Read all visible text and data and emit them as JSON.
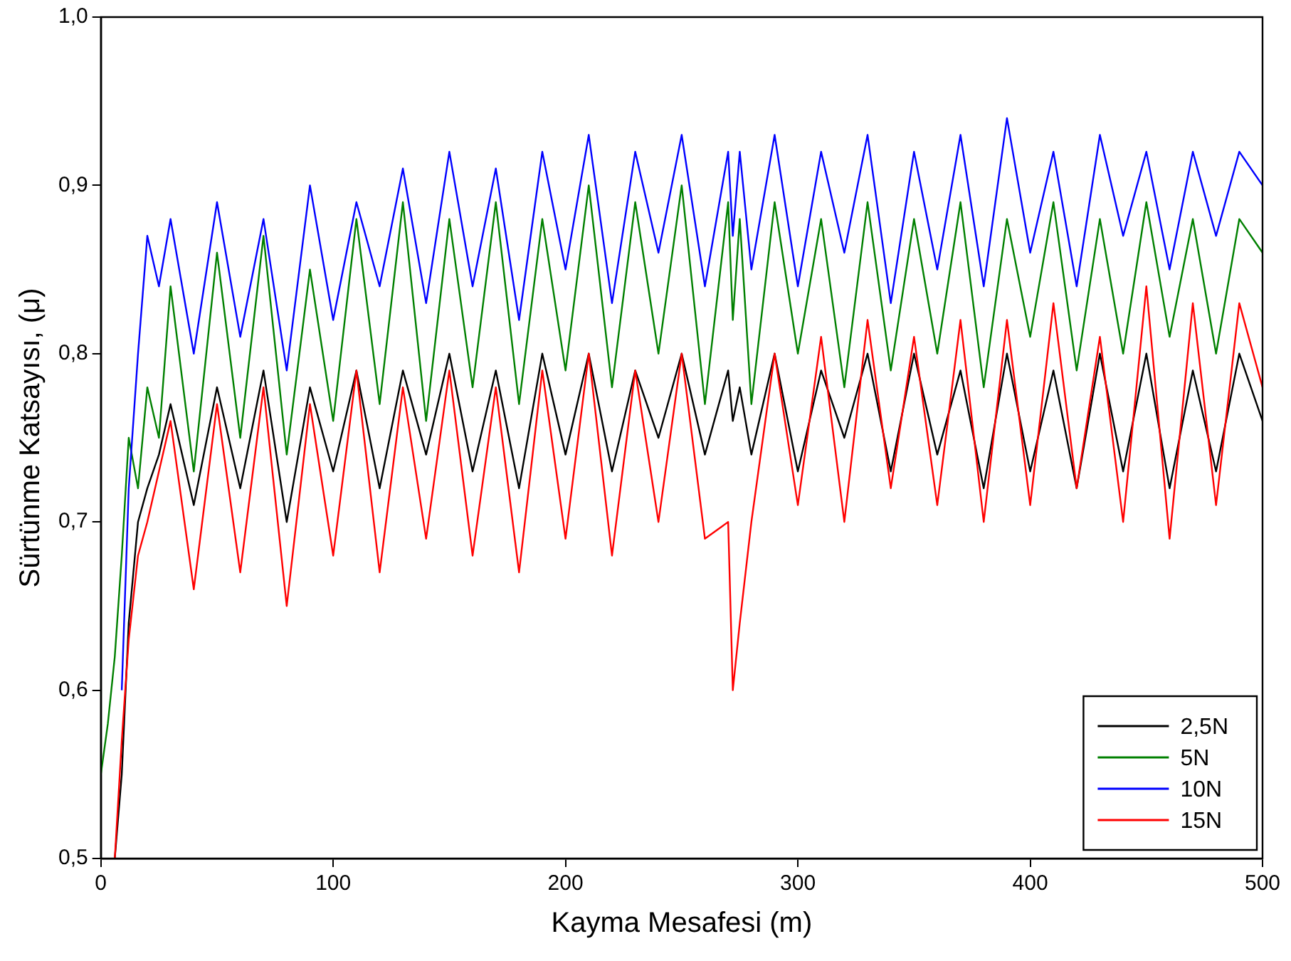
{
  "chart_data": {
    "type": "line",
    "xlabel": "Kayma Mesafesi (m)",
    "ylabel": "Sürtünme Katsayısı, (μ)",
    "x": [
      0,
      3,
      6,
      9,
      12,
      16,
      20,
      25,
      30,
      40,
      50,
      60,
      70,
      80,
      90,
      100,
      110,
      120,
      130,
      140,
      150,
      160,
      170,
      180,
      190,
      200,
      210,
      220,
      230,
      240,
      250,
      260,
      270,
      272,
      275,
      280,
      290,
      300,
      310,
      320,
      330,
      340,
      350,
      360,
      370,
      380,
      390,
      400,
      410,
      420,
      430,
      440,
      450,
      460,
      470,
      480,
      490,
      500
    ],
    "series": [
      {
        "name": "2,5N",
        "color": "#000000",
        "values": [
          null,
          null,
          0.5,
          0.55,
          0.64,
          0.7,
          0.72,
          0.74,
          0.77,
          0.71,
          0.78,
          0.72,
          0.79,
          0.7,
          0.78,
          0.73,
          0.79,
          0.72,
          0.79,
          0.74,
          0.8,
          0.73,
          0.79,
          0.72,
          0.8,
          0.74,
          0.8,
          0.73,
          0.79,
          0.75,
          0.8,
          0.74,
          0.79,
          0.76,
          0.78,
          0.74,
          0.8,
          0.73,
          0.79,
          0.75,
          0.8,
          0.73,
          0.8,
          0.74,
          0.79,
          0.72,
          0.8,
          0.73,
          0.79,
          0.72,
          0.8,
          0.73,
          0.8,
          0.72,
          0.79,
          0.73,
          0.8,
          0.76
        ]
      },
      {
        "name": "5N",
        "color": "#008000",
        "values": [
          0.55,
          0.58,
          0.62,
          0.68,
          0.75,
          0.72,
          0.78,
          0.75,
          0.84,
          0.73,
          0.86,
          0.75,
          0.87,
          0.74,
          0.85,
          0.76,
          0.88,
          0.77,
          0.89,
          0.76,
          0.88,
          0.78,
          0.89,
          0.77,
          0.88,
          0.79,
          0.9,
          0.78,
          0.89,
          0.8,
          0.9,
          0.77,
          0.89,
          0.82,
          0.88,
          0.77,
          0.89,
          0.8,
          0.88,
          0.78,
          0.89,
          0.79,
          0.88,
          0.8,
          0.89,
          0.78,
          0.88,
          0.81,
          0.89,
          0.79,
          0.88,
          0.8,
          0.89,
          0.81,
          0.88,
          0.8,
          0.88,
          0.86
        ]
      },
      {
        "name": "10N",
        "color": "#0000ff",
        "values": [
          null,
          null,
          null,
          0.6,
          0.72,
          0.8,
          0.87,
          0.84,
          0.88,
          0.8,
          0.89,
          0.81,
          0.88,
          0.79,
          0.9,
          0.82,
          0.89,
          0.84,
          0.91,
          0.83,
          0.92,
          0.84,
          0.91,
          0.82,
          0.92,
          0.85,
          0.93,
          0.83,
          0.92,
          0.86,
          0.93,
          0.84,
          0.92,
          0.87,
          0.92,
          0.85,
          0.93,
          0.84,
          0.92,
          0.86,
          0.93,
          0.83,
          0.92,
          0.85,
          0.93,
          0.84,
          0.94,
          0.86,
          0.92,
          0.84,
          0.93,
          0.87,
          0.92,
          0.85,
          0.92,
          0.87,
          0.92,
          0.9
        ]
      },
      {
        "name": "15N",
        "color": "#ff0000",
        "values": [
          null,
          null,
          0.5,
          0.57,
          0.63,
          0.68,
          0.7,
          0.73,
          0.76,
          0.66,
          0.77,
          0.67,
          0.78,
          0.65,
          0.77,
          0.68,
          0.79,
          0.67,
          0.78,
          0.69,
          0.79,
          0.68,
          0.78,
          0.67,
          0.79,
          0.69,
          0.8,
          0.68,
          0.79,
          0.7,
          0.8,
          0.69,
          0.7,
          0.6,
          0.64,
          0.7,
          0.8,
          0.71,
          0.81,
          0.7,
          0.82,
          0.72,
          0.81,
          0.71,
          0.82,
          0.7,
          0.82,
          0.71,
          0.83,
          0.72,
          0.81,
          0.7,
          0.84,
          0.69,
          0.83,
          0.71,
          0.83,
          0.78
        ]
      }
    ],
    "xlim": [
      0,
      500
    ],
    "xticks": [
      0,
      100,
      200,
      300,
      400,
      500
    ],
    "ylim": [
      0.5,
      1.0
    ],
    "yticks": [
      {
        "value": 0.5,
        "label": "0,5"
      },
      {
        "value": 0.6,
        "label": "0,6"
      },
      {
        "value": 0.7,
        "label": "0,7"
      },
      {
        "value": 0.8,
        "label": "0,8"
      },
      {
        "value": 0.9,
        "label": "0,9"
      },
      {
        "value": 1.0,
        "label": "1,0"
      }
    ],
    "grid": false,
    "legend": "bottom right",
    "marker": "none",
    "line_style": "solid"
  }
}
